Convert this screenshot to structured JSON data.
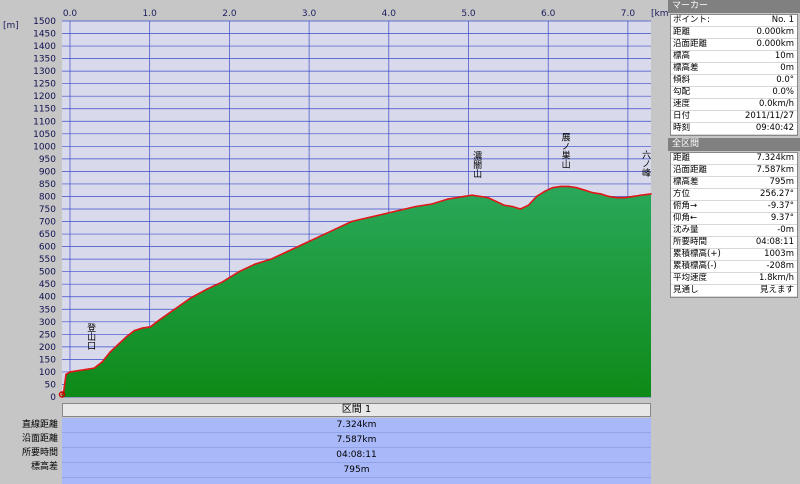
{
  "chart_data": {
    "type": "area",
    "x_unit": "[km]",
    "y_unit": "[m]",
    "xlim": [
      0.0,
      7.324
    ],
    "ylim": [
      0,
      1500
    ],
    "x_ticks": [
      "0.0",
      "1.0",
      "2.0",
      "3.0",
      "4.0",
      "5.0",
      "6.0",
      "7.0"
    ],
    "y_ticks": [
      "0",
      "50",
      "100",
      "150",
      "200",
      "250",
      "300",
      "350",
      "400",
      "450",
      "500",
      "550",
      "600",
      "650",
      "700",
      "750",
      "800",
      "850",
      "900",
      "950",
      "1000",
      "1050",
      "1100",
      "1150",
      "1200",
      "1250",
      "1300",
      "1350",
      "1400",
      "1450",
      "1500"
    ],
    "grid": true,
    "series": [
      {
        "x": [
          0.0,
          0.02,
          0.05,
          0.1,
          0.2,
          0.3,
          0.4,
          0.5,
          0.6,
          0.7,
          0.8,
          0.9,
          1.0,
          1.1,
          1.2,
          1.4,
          1.6,
          1.8,
          2.0,
          2.2,
          2.4,
          2.6,
          2.8,
          3.0,
          3.2,
          3.4,
          3.6,
          3.8,
          4.0,
          4.2,
          4.4,
          4.6,
          4.8,
          5.0,
          5.1,
          5.2,
          5.3,
          5.4,
          5.5,
          5.6,
          5.7,
          5.8,
          5.9,
          6.0,
          6.1,
          6.2,
          6.3,
          6.4,
          6.5,
          6.6,
          6.7,
          6.8,
          6.9,
          7.0,
          7.1,
          7.2,
          7.324
        ],
        "y": [
          10,
          20,
          90,
          100,
          105,
          110,
          115,
          140,
          180,
          210,
          240,
          265,
          275,
          280,
          305,
          350,
          395,
          430,
          460,
          500,
          530,
          550,
          580,
          610,
          640,
          670,
          700,
          715,
          730,
          745,
          760,
          770,
          790,
          800,
          805,
          800,
          795,
          780,
          765,
          760,
          750,
          765,
          800,
          820,
          835,
          840,
          840,
          835,
          825,
          815,
          810,
          800,
          795,
          795,
          800,
          805,
          810
        ]
      }
    ],
    "peak_labels": [
      {
        "text": "登山口",
        "x": 0.35,
        "y": 120
      },
      {
        "text": "濃闇山",
        "x": 5.15,
        "y": 805
      },
      {
        "text": "展ノ巣山",
        "x": 6.25,
        "y": 840
      },
      {
        "text": "六ノ峰",
        "x": 7.3,
        "y": 810
      }
    ],
    "colors": {
      "fill_top": "#2aa85a",
      "fill_bottom": "#0e8a18",
      "line": "#e01818",
      "plot_bg": "#d9d9ec",
      "grid": "#3a4cc8"
    }
  },
  "section": {
    "label": "区間 1",
    "rows": [
      {
        "label": "直線距離",
        "value": "7.324km"
      },
      {
        "label": "沿面距離",
        "value": "7.587km"
      },
      {
        "label": "所要時間",
        "value": "04:08:11"
      },
      {
        "label": "標高差",
        "value": "795m"
      }
    ]
  },
  "marker_panel": {
    "title": "マーカー",
    "rows": [
      {
        "k": "ポイント:",
        "v": "No. 1"
      },
      {
        "k": "距離",
        "v": "0.000km"
      },
      {
        "k": "沿面距離",
        "v": "0.000km"
      },
      {
        "k": "標高",
        "v": "10m"
      },
      {
        "k": "標高差",
        "v": "0m"
      },
      {
        "k": "傾斜",
        "v": "0.0°"
      },
      {
        "k": "勾配",
        "v": "0.0%"
      },
      {
        "k": "速度",
        "v": "0.0km/h"
      },
      {
        "k": "日付",
        "v": "2011/11/27"
      },
      {
        "k": "時刻",
        "v": "09:40:42"
      }
    ]
  },
  "all_panel": {
    "title": "全区間",
    "rows": [
      {
        "k": "距離",
        "v": "7.324km"
      },
      {
        "k": "沿面距離",
        "v": "7.587km"
      },
      {
        "k": "標高差",
        "v": "795m"
      },
      {
        "k": "方位",
        "v": "256.27°"
      },
      {
        "k": "俯角→",
        "v": "-9.37°"
      },
      {
        "k": "仰角←",
        "v": "9.37°"
      },
      {
        "k": "沈み量",
        "v": "-0m"
      },
      {
        "k": "所要時間",
        "v": "04:08:11"
      },
      {
        "k": "累積標高(+)",
        "v": "1003m"
      },
      {
        "k": "累積標高(-)",
        "v": "-208m"
      },
      {
        "k": "平均速度",
        "v": "1.8km/h"
      },
      {
        "k": "見通し",
        "v": "見えます"
      }
    ]
  }
}
